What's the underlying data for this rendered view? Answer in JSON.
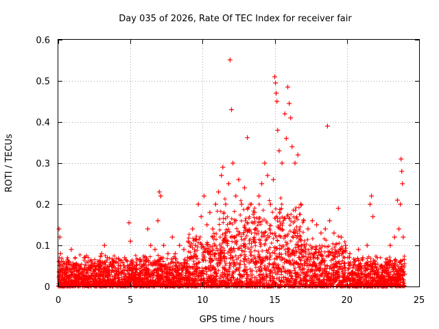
{
  "chart_data": {
    "type": "scatter",
    "title": "Day 035 of 2026, Rate Of TEC Index for receiver fair",
    "xlabel": "GPS time / hours",
    "ylabel": "ROTI / TECUs",
    "xlim": [
      0,
      25
    ],
    "ylim": [
      0,
      0.6
    ],
    "xticks": [
      0,
      5,
      10,
      15,
      20,
      25
    ],
    "yticks": [
      0,
      0.1,
      0.2,
      0.3,
      0.4,
      0.5,
      0.6
    ],
    "xtick_labels": [
      "0",
      "5",
      "10",
      "15",
      "20",
      "25"
    ],
    "ytick_labels": [
      "0",
      "0.1",
      "0.2",
      "0.3",
      "0.4",
      "0.5",
      "0.6"
    ],
    "grid": true,
    "marker": "+",
    "series": [
      {
        "name": "ROTI",
        "color": "#ff0000",
        "points": [
          [
            0.05,
            0.14
          ],
          [
            0.1,
            0.12
          ],
          [
            0.15,
            0.08
          ],
          [
            0.2,
            0.06
          ],
          [
            0.3,
            0.05
          ],
          [
            0.5,
            0.04
          ],
          [
            0.7,
            0.06
          ],
          [
            0.9,
            0.09
          ],
          [
            1.1,
            0.05
          ],
          [
            1.3,
            0.04
          ],
          [
            1.6,
            0.03
          ],
          [
            1.8,
            0.07
          ],
          [
            2.0,
            0.04
          ],
          [
            2.3,
            0.05
          ],
          [
            2.6,
            0.04
          ],
          [
            2.9,
            0.06
          ],
          [
            3.0,
            0.08
          ],
          [
            3.2,
            0.1
          ],
          [
            3.4,
            0.07
          ],
          [
            3.7,
            0.05
          ],
          [
            4.0,
            0.06
          ],
          [
            4.3,
            0.05
          ],
          [
            4.6,
            0.07
          ],
          [
            4.8,
            0.05
          ],
          [
            4.9,
            0.155
          ],
          [
            5.0,
            0.11
          ],
          [
            5.2,
            0.04
          ],
          [
            5.5,
            0.03
          ],
          [
            5.8,
            0.05
          ],
          [
            6.0,
            0.07
          ],
          [
            6.2,
            0.14
          ],
          [
            6.4,
            0.1
          ],
          [
            6.7,
            0.09
          ],
          [
            6.9,
            0.16
          ],
          [
            7.0,
            0.23
          ],
          [
            7.1,
            0.22
          ],
          [
            7.3,
            0.1
          ],
          [
            7.6,
            0.08
          ],
          [
            7.9,
            0.12
          ],
          [
            8.1,
            0.08
          ],
          [
            8.4,
            0.1
          ],
          [
            8.7,
            0.09
          ],
          [
            9.0,
            0.11
          ],
          [
            9.3,
            0.14
          ],
          [
            9.5,
            0.1
          ],
          [
            9.7,
            0.2
          ],
          [
            9.9,
            0.17
          ],
          [
            10.1,
            0.22
          ],
          [
            10.3,
            0.15
          ],
          [
            10.5,
            0.18
          ],
          [
            10.7,
            0.14
          ],
          [
            10.9,
            0.2
          ],
          [
            11.1,
            0.23
          ],
          [
            11.3,
            0.27
          ],
          [
            11.4,
            0.29
          ],
          [
            11.6,
            0.2
          ],
          [
            11.8,
            0.25
          ],
          [
            11.9,
            0.551
          ],
          [
            12.0,
            0.43
          ],
          [
            12.1,
            0.3
          ],
          [
            12.3,
            0.22
          ],
          [
            12.5,
            0.26
          ],
          [
            12.7,
            0.2
          ],
          [
            12.9,
            0.24
          ],
          [
            13.1,
            0.362
          ],
          [
            13.3,
            0.2
          ],
          [
            13.6,
            0.18
          ],
          [
            13.9,
            0.22
          ],
          [
            14.1,
            0.25
          ],
          [
            14.3,
            0.3
          ],
          [
            14.5,
            0.27
          ],
          [
            14.7,
            0.2
          ],
          [
            14.9,
            0.26
          ],
          [
            15.0,
            0.51
          ],
          [
            15.05,
            0.495
          ],
          [
            15.1,
            0.47
          ],
          [
            15.15,
            0.45
          ],
          [
            15.2,
            0.38
          ],
          [
            15.3,
            0.33
          ],
          [
            15.5,
            0.3
          ],
          [
            15.7,
            0.42
          ],
          [
            15.8,
            0.36
          ],
          [
            15.9,
            0.485
          ],
          [
            16.0,
            0.445
          ],
          [
            16.1,
            0.41
          ],
          [
            16.2,
            0.34
          ],
          [
            16.4,
            0.3
          ],
          [
            16.6,
            0.32
          ],
          [
            16.8,
            0.2
          ],
          [
            17.0,
            0.16
          ],
          [
            17.3,
            0.14
          ],
          [
            17.6,
            0.16
          ],
          [
            17.9,
            0.15
          ],
          [
            18.2,
            0.13
          ],
          [
            18.5,
            0.14
          ],
          [
            18.65,
            0.39
          ],
          [
            18.8,
            0.16
          ],
          [
            19.1,
            0.13
          ],
          [
            19.4,
            0.19
          ],
          [
            19.6,
            0.12
          ],
          [
            19.9,
            0.1
          ],
          [
            20.2,
            0.08
          ],
          [
            20.5,
            0.06
          ],
          [
            20.8,
            0.09
          ],
          [
            21.1,
            0.07
          ],
          [
            21.4,
            0.1
          ],
          [
            21.6,
            0.2
          ],
          [
            21.7,
            0.22
          ],
          [
            21.8,
            0.17
          ],
          [
            22.1,
            0.07
          ],
          [
            22.4,
            0.05
          ],
          [
            22.7,
            0.06
          ],
          [
            23.0,
            0.1
          ],
          [
            23.3,
            0.12
          ],
          [
            23.5,
            0.21
          ],
          [
            23.6,
            0.14
          ],
          [
            23.7,
            0.2
          ],
          [
            23.75,
            0.31
          ],
          [
            23.8,
            0.28
          ],
          [
            23.85,
            0.25
          ],
          [
            23.9,
            0.12
          ],
          [
            24.0,
            0.03
          ]
        ]
      }
    ]
  }
}
